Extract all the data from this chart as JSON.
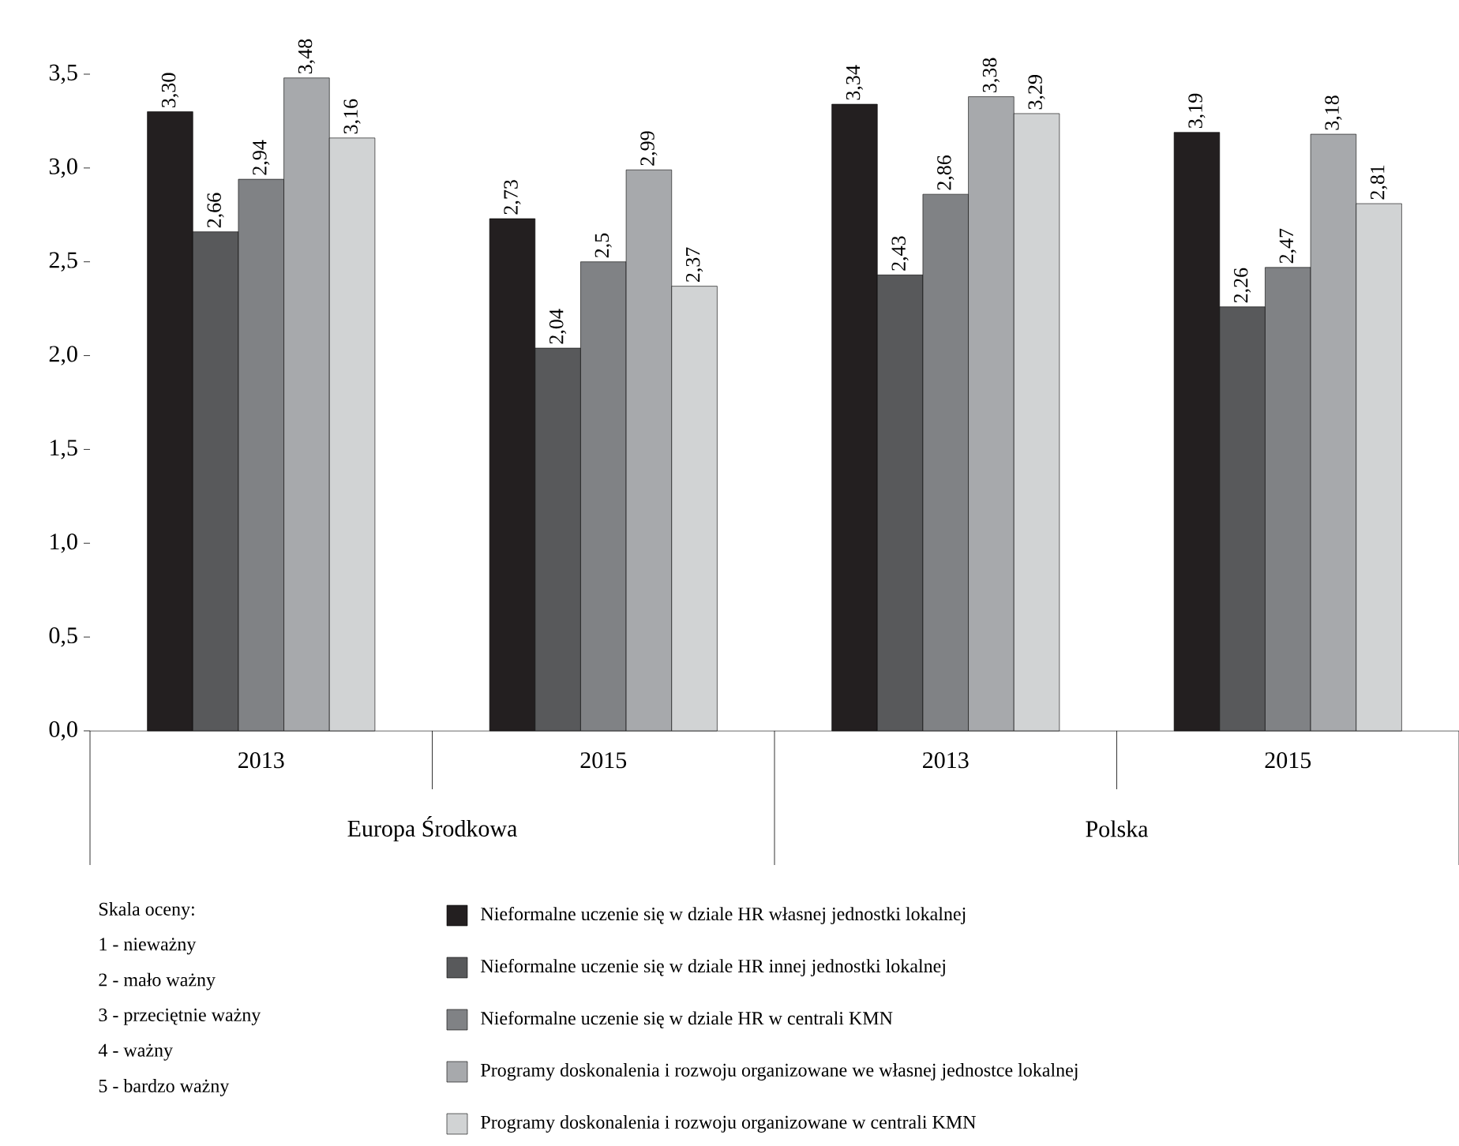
{
  "chart_data": {
    "type": "bar",
    "categories": [
      "2013",
      "2015",
      "2013",
      "2015"
    ],
    "series": [
      {
        "name": "Nieformalne uczenie się w dziale HR własnej jednostki lokalnej",
        "color": "#231f20",
        "values": [
          3.3,
          2.73,
          3.34,
          3.19
        ],
        "value_labels": [
          "3,30",
          "2,73",
          "3,34",
          "3,19"
        ]
      },
      {
        "name": "Nieformalne uczenie się w dziale HR innej jednostki lokalnej",
        "color": "#58595b",
        "values": [
          2.66,
          2.04,
          2.43,
          2.26
        ],
        "value_labels": [
          "2,66",
          "2,04",
          "2,43",
          "2,26"
        ]
      },
      {
        "name": "Nieformalne uczenie się w dziale HR w centrali KMN",
        "color": "#808285",
        "values": [
          2.94,
          2.5,
          2.86,
          2.47
        ],
        "value_labels": [
          "2,94",
          "2,5",
          "2,86",
          "2,47"
        ]
      },
      {
        "name": "Programy doskonalenia i rozwoju organizowane we własnej jednostce lokalnej",
        "color": "#a7a9ac",
        "values": [
          3.48,
          2.99,
          3.38,
          3.18
        ],
        "value_labels": [
          "3,48",
          "2,99",
          "3,38",
          "3,18"
        ]
      },
      {
        "name": "Programy doskonalenia i rozwoju organizowane w centrali KMN",
        "color": "#d1d3d4",
        "values": [
          3.16,
          2.37,
          3.29,
          2.81
        ],
        "value_labels": [
          "3,16",
          "2,37",
          "3,29",
          "2,81"
        ]
      }
    ],
    "ylim": [
      0,
      3.5
    ],
    "yticks": [
      {
        "value": 0,
        "label": "0,0"
      },
      {
        "value": 0.5,
        "label": "0,5"
      },
      {
        "value": 1,
        "label": "1,0"
      },
      {
        "value": 1.5,
        "label": "1,5"
      },
      {
        "value": 2,
        "label": "2,0"
      },
      {
        "value": 2.5,
        "label": "2,5"
      },
      {
        "value": 3,
        "label": "3,0"
      },
      {
        "value": 3.5,
        "label": "3,5"
      }
    ],
    "legend": "bottom",
    "annotations": [
      "Europa Środkowa",
      "Polska",
      "Skala oceny:",
      "1 - nieważny",
      "2 - mało ważny",
      "3 - przeciętnie ważny",
      "4 - ważny",
      "5 - bardzo ważny"
    ]
  }
}
